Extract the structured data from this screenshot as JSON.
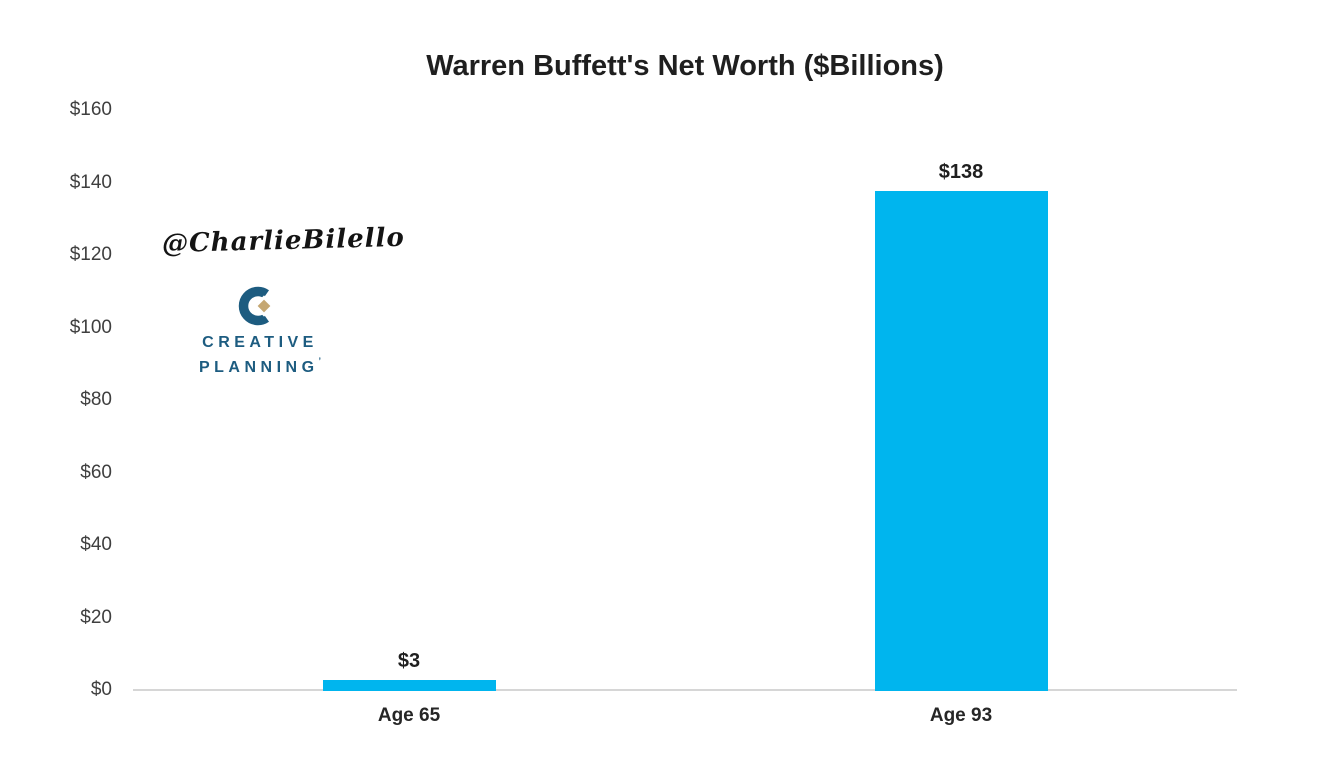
{
  "page": {
    "background_color": "#ffffff"
  },
  "chart_data": {
    "type": "bar",
    "title": "Warren Buffett's Net Worth ($Billions)",
    "categories": [
      "Age 65",
      "Age 93"
    ],
    "values": [
      3,
      138
    ],
    "value_labels": [
      "$3",
      "$138"
    ],
    "xlabel": "",
    "ylabel": "",
    "ylim": [
      0,
      160
    ],
    "ytick_values": [
      0,
      20,
      40,
      60,
      80,
      100,
      120,
      140,
      160
    ],
    "ytick_labels": [
      "$0",
      "$20",
      "$40",
      "$60",
      "$80",
      "$100",
      "$120",
      "$140",
      "$160"
    ],
    "grid": false,
    "legend": "none",
    "bar_color": "#00b5ee",
    "axis_line_color": "#d6d6d6",
    "tick_color": "#3f3f3f",
    "label_color": "#1f1f1f"
  },
  "watermark": {
    "handle": "@CharlieBilello"
  },
  "logo": {
    "name": "Creative Planning",
    "line1": "CREATIVE",
    "line2": "PLANNING",
    "trademark_mark": "’",
    "brand_blue": "#1d5c80",
    "brand_tan": "#c5a772"
  }
}
